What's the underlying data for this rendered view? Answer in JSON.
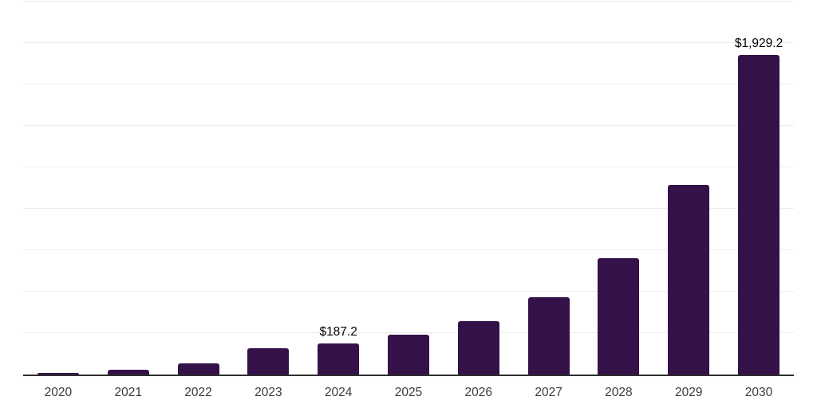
{
  "chart_data": {
    "type": "bar",
    "title": "",
    "xlabel": "",
    "ylabel": "",
    "categories": [
      "2020",
      "2021",
      "2022",
      "2023",
      "2024",
      "2025",
      "2026",
      "2027",
      "2028",
      "2029",
      "2030"
    ],
    "values": [
      8,
      31,
      67,
      158,
      187.2,
      239,
      321,
      468,
      700,
      1143,
      1929.2
    ],
    "value_labels": [
      "",
      "",
      "",
      "",
      "$187.2",
      "",
      "",
      "",
      "",
      "",
      "$1,929.2"
    ],
    "ylim": [
      0,
      2250
    ],
    "gridline_interval": 250,
    "grid": "horizontal",
    "legend": "none",
    "y_axis_labels_visible": false,
    "colors": {
      "bar": "#341249",
      "gridline": "#ededed",
      "axis_line": "#2e2e2e",
      "value_label": "#000000",
      "tick_label": "#3b3b3b"
    }
  }
}
